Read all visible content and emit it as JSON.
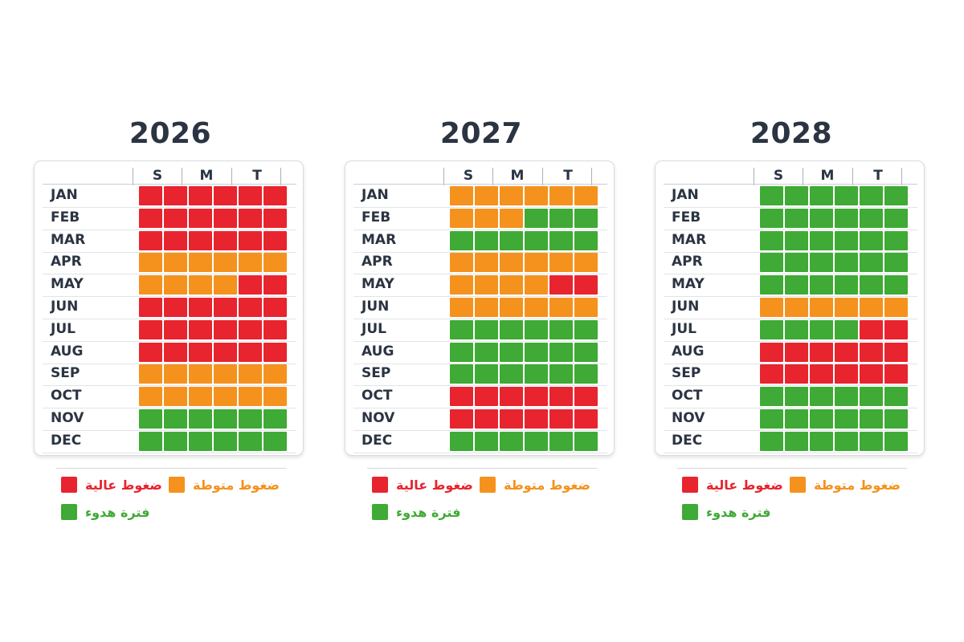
{
  "colors": {
    "high": "#e8242f",
    "medium": "#f5921e",
    "calm": "#3faa35"
  },
  "chart_data": [
    {
      "type": "heatmap",
      "title": "2026",
      "columns_header": [
        "S",
        "M",
        "T"
      ],
      "rows": [
        {
          "month": "JAN",
          "cells": [
            "high",
            "high",
            "high",
            "high",
            "high",
            "high"
          ]
        },
        {
          "month": "FEB",
          "cells": [
            "high",
            "high",
            "high",
            "high",
            "high",
            "high"
          ]
        },
        {
          "month": "MAR",
          "cells": [
            "high",
            "high",
            "high",
            "high",
            "high",
            "high"
          ]
        },
        {
          "month": "APR",
          "cells": [
            "medium",
            "medium",
            "medium",
            "medium",
            "medium",
            "medium"
          ]
        },
        {
          "month": "MAY",
          "cells": [
            "medium",
            "medium",
            "medium",
            "medium",
            "high",
            "high"
          ]
        },
        {
          "month": "JUN",
          "cells": [
            "high",
            "high",
            "high",
            "high",
            "high",
            "high"
          ]
        },
        {
          "month": "JUL",
          "cells": [
            "high",
            "high",
            "high",
            "high",
            "high",
            "high"
          ]
        },
        {
          "month": "AUG",
          "cells": [
            "high",
            "high",
            "high",
            "high",
            "high",
            "high"
          ]
        },
        {
          "month": "SEP",
          "cells": [
            "medium",
            "medium",
            "medium",
            "medium",
            "medium",
            "medium"
          ]
        },
        {
          "month": "OCT",
          "cells": [
            "medium",
            "medium",
            "medium",
            "medium",
            "medium",
            "medium"
          ]
        },
        {
          "month": "NOV",
          "cells": [
            "calm",
            "calm",
            "calm",
            "calm",
            "calm",
            "calm"
          ]
        },
        {
          "month": "DEC",
          "cells": [
            "calm",
            "calm",
            "calm",
            "calm",
            "calm",
            "calm"
          ]
        }
      ],
      "legend": [
        {
          "key": "high",
          "label": "ضغوط عالية"
        },
        {
          "key": "medium",
          "label": "ضغوط متوطة"
        },
        {
          "key": "calm",
          "label": "فترة هدوء"
        }
      ]
    },
    {
      "type": "heatmap",
      "title": "2027",
      "columns_header": [
        "S",
        "M",
        "T"
      ],
      "rows": [
        {
          "month": "JAN",
          "cells": [
            "medium",
            "medium",
            "medium",
            "medium",
            "medium",
            "medium"
          ]
        },
        {
          "month": "FEB",
          "cells": [
            "medium",
            "medium",
            "medium",
            "calm",
            "calm",
            "calm"
          ]
        },
        {
          "month": "MAR",
          "cells": [
            "calm",
            "calm",
            "calm",
            "calm",
            "calm",
            "calm"
          ]
        },
        {
          "month": "APR",
          "cells": [
            "medium",
            "medium",
            "medium",
            "medium",
            "medium",
            "medium"
          ]
        },
        {
          "month": "MAY",
          "cells": [
            "medium",
            "medium",
            "medium",
            "medium",
            "high",
            "high"
          ]
        },
        {
          "month": "JUN",
          "cells": [
            "medium",
            "medium",
            "medium",
            "medium",
            "medium",
            "medium"
          ]
        },
        {
          "month": "JUL",
          "cells": [
            "calm",
            "calm",
            "calm",
            "calm",
            "calm",
            "calm"
          ]
        },
        {
          "month": "AUG",
          "cells": [
            "calm",
            "calm",
            "calm",
            "calm",
            "calm",
            "calm"
          ]
        },
        {
          "month": "SEP",
          "cells": [
            "calm",
            "calm",
            "calm",
            "calm",
            "calm",
            "calm"
          ]
        },
        {
          "month": "OCT",
          "cells": [
            "high",
            "high",
            "high",
            "high",
            "high",
            "high"
          ]
        },
        {
          "month": "NOV",
          "cells": [
            "high",
            "high",
            "high",
            "high",
            "high",
            "high"
          ]
        },
        {
          "month": "DEC",
          "cells": [
            "calm",
            "calm",
            "calm",
            "calm",
            "calm",
            "calm"
          ]
        }
      ],
      "legend": [
        {
          "key": "high",
          "label": "ضغوط عالية"
        },
        {
          "key": "medium",
          "label": "ضغوط متوطة"
        },
        {
          "key": "calm",
          "label": "فترة هدوء"
        }
      ]
    },
    {
      "type": "heatmap",
      "title": "2028",
      "columns_header": [
        "S",
        "M",
        "T"
      ],
      "rows": [
        {
          "month": "JAN",
          "cells": [
            "calm",
            "calm",
            "calm",
            "calm",
            "calm",
            "calm"
          ]
        },
        {
          "month": "FEB",
          "cells": [
            "calm",
            "calm",
            "calm",
            "calm",
            "calm",
            "calm"
          ]
        },
        {
          "month": "MAR",
          "cells": [
            "calm",
            "calm",
            "calm",
            "calm",
            "calm",
            "calm"
          ]
        },
        {
          "month": "APR",
          "cells": [
            "calm",
            "calm",
            "calm",
            "calm",
            "calm",
            "calm"
          ]
        },
        {
          "month": "MAY",
          "cells": [
            "calm",
            "calm",
            "calm",
            "calm",
            "calm",
            "calm"
          ]
        },
        {
          "month": "JUN",
          "cells": [
            "medium",
            "medium",
            "medium",
            "medium",
            "medium",
            "medium"
          ]
        },
        {
          "month": "JUL",
          "cells": [
            "calm",
            "calm",
            "calm",
            "calm",
            "high",
            "high"
          ]
        },
        {
          "month": "AUG",
          "cells": [
            "high",
            "high",
            "high",
            "high",
            "high",
            "high"
          ]
        },
        {
          "month": "SEP",
          "cells": [
            "high",
            "high",
            "high",
            "high",
            "high",
            "high"
          ]
        },
        {
          "month": "OCT",
          "cells": [
            "calm",
            "calm",
            "calm",
            "calm",
            "calm",
            "calm"
          ]
        },
        {
          "month": "NOV",
          "cells": [
            "calm",
            "calm",
            "calm",
            "calm",
            "calm",
            "calm"
          ]
        },
        {
          "month": "DEC",
          "cells": [
            "calm",
            "calm",
            "calm",
            "calm",
            "calm",
            "calm"
          ]
        }
      ],
      "legend": [
        {
          "key": "high",
          "label": "ضغوط عالية"
        },
        {
          "key": "medium",
          "label": "ضغوط متوطة"
        },
        {
          "key": "calm",
          "label": "فترة هدوء"
        }
      ]
    }
  ]
}
